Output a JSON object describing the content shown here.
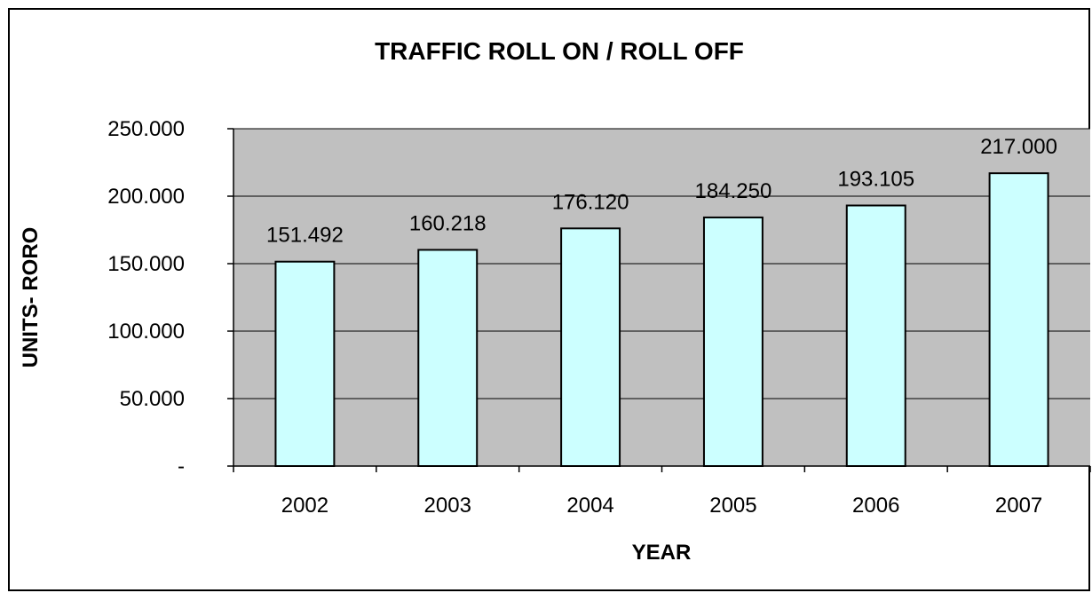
{
  "chart_data": {
    "type": "bar",
    "title": "TRAFFIC ROLL ON / ROLL OFF",
    "xlabel": "YEAR",
    "ylabel": "UNITS- RORO",
    "categories": [
      "2002",
      "2003",
      "2004",
      "2005",
      "2006",
      "2007"
    ],
    "values": [
      151492,
      160218,
      176120,
      184250,
      193105,
      217000
    ],
    "value_labels": [
      "151.492",
      "160.218",
      "176.120",
      "184.250",
      "193.105",
      "217.000"
    ],
    "ylim": [
      0,
      250000
    ],
    "yticks": [
      0,
      50000,
      100000,
      150000,
      200000,
      250000
    ],
    "ytick_labels": [
      "-",
      "50.000",
      "100.000",
      "150.000",
      "200.000",
      "250.000"
    ],
    "grid": true,
    "legend": "none",
    "colors": {
      "plot_background": "#c0c0c0",
      "bar_fill": "#ccffff",
      "bar_stroke": "#000000",
      "gridline": "#000000"
    }
  }
}
